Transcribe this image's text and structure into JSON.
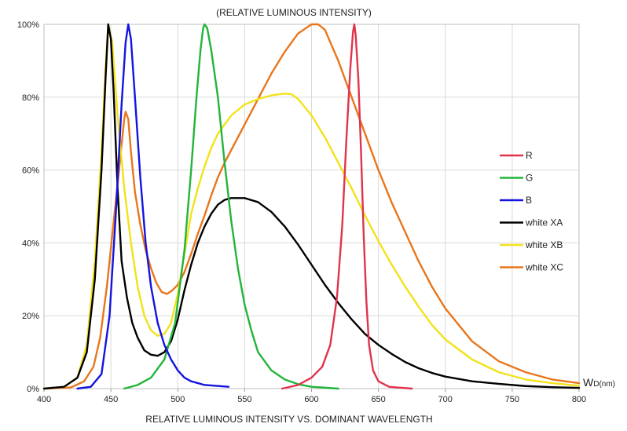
{
  "chart_data": {
    "type": "line",
    "title": "(RELATIVE LUMINOUS INTENSITY)",
    "xlabel": "RELATIVE LUMINOUS INTENSITY VS. DOMINANT WAVELENGTH",
    "x_unit_main": "W",
    "x_unit_sub": "D(nm)",
    "xlim": [
      400,
      800
    ],
    "ylim": [
      0,
      100
    ],
    "x_ticks": [
      400,
      450,
      500,
      550,
      600,
      650,
      700,
      750,
      800
    ],
    "y_ticks": [
      0,
      20,
      40,
      60,
      80,
      100
    ],
    "y_tick_labels": [
      "0%",
      "20%",
      "40%",
      "60%",
      "80%",
      "100%"
    ],
    "grid": true,
    "legend_position": "right",
    "series": [
      {
        "name": "R",
        "color": "#e0344c",
        "points": [
          [
            578,
            0
          ],
          [
            590,
            1
          ],
          [
            600,
            3
          ],
          [
            608,
            6
          ],
          [
            614,
            12
          ],
          [
            619,
            25
          ],
          [
            623,
            45
          ],
          [
            626,
            68
          ],
          [
            629,
            88
          ],
          [
            631,
            98
          ],
          [
            632,
            100
          ],
          [
            633,
            97
          ],
          [
            635,
            85
          ],
          [
            637,
            65
          ],
          [
            639,
            42
          ],
          [
            641,
            24
          ],
          [
            643,
            12
          ],
          [
            646,
            5
          ],
          [
            650,
            2
          ],
          [
            658,
            0.5
          ],
          [
            675,
            0
          ]
        ]
      },
      {
        "name": "G",
        "color": "#22b53a",
        "points": [
          [
            460,
            0
          ],
          [
            470,
            1
          ],
          [
            480,
            3
          ],
          [
            490,
            8
          ],
          [
            498,
            18
          ],
          [
            505,
            38
          ],
          [
            510,
            60
          ],
          [
            514,
            80
          ],
          [
            517,
            93
          ],
          [
            519,
            99
          ],
          [
            520,
            100
          ],
          [
            522,
            99
          ],
          [
            525,
            93
          ],
          [
            530,
            80
          ],
          [
            535,
            62
          ],
          [
            540,
            46
          ],
          [
            545,
            33
          ],
          [
            550,
            23
          ],
          [
            555,
            16
          ],
          [
            560,
            10
          ],
          [
            570,
            5
          ],
          [
            580,
            2.5
          ],
          [
            590,
            1.2
          ],
          [
            600,
            0.5
          ],
          [
            620,
            0
          ]
        ]
      },
      {
        "name": "B",
        "color": "#1414e0",
        "points": [
          [
            425,
            0
          ],
          [
            435,
            0.5
          ],
          [
            443,
            4
          ],
          [
            449,
            20
          ],
          [
            454,
            50
          ],
          [
            458,
            78
          ],
          [
            461,
            95
          ],
          [
            463,
            100
          ],
          [
            465,
            96
          ],
          [
            468,
            80
          ],
          [
            472,
            58
          ],
          [
            476,
            40
          ],
          [
            480,
            28
          ],
          [
            485,
            18
          ],
          [
            490,
            12
          ],
          [
            495,
            8
          ],
          [
            500,
            5
          ],
          [
            505,
            3
          ],
          [
            510,
            2
          ],
          [
            520,
            1
          ],
          [
            538,
            0.5
          ]
        ]
      },
      {
        "name": "white XA",
        "color": "#000000",
        "points": [
          [
            400,
            0
          ],
          [
            415,
            0.5
          ],
          [
            425,
            3
          ],
          [
            432,
            10
          ],
          [
            438,
            30
          ],
          [
            443,
            60
          ],
          [
            446,
            85
          ],
          [
            448,
            100
          ],
          [
            450,
            96
          ],
          [
            452,
            82
          ],
          [
            455,
            55
          ],
          [
            458,
            35
          ],
          [
            462,
            25
          ],
          [
            466,
            18
          ],
          [
            470,
            14
          ],
          [
            475,
            10.5
          ],
          [
            480,
            9.3
          ],
          [
            485,
            9
          ],
          [
            490,
            10
          ],
          [
            495,
            13
          ],
          [
            500,
            19
          ],
          [
            505,
            27
          ],
          [
            510,
            34
          ],
          [
            515,
            40
          ],
          [
            520,
            44.5
          ],
          [
            525,
            48
          ],
          [
            530,
            50.5
          ],
          [
            535,
            51.8
          ],
          [
            540,
            52.3
          ],
          [
            550,
            52.3
          ],
          [
            560,
            51.2
          ],
          [
            570,
            48.5
          ],
          [
            580,
            44.5
          ],
          [
            590,
            39.5
          ],
          [
            600,
            34
          ],
          [
            610,
            28.5
          ],
          [
            620,
            23.5
          ],
          [
            630,
            19
          ],
          [
            640,
            15
          ],
          [
            650,
            12
          ],
          [
            660,
            9.5
          ],
          [
            670,
            7.3
          ],
          [
            680,
            5.6
          ],
          [
            690,
            4.3
          ],
          [
            700,
            3.3
          ],
          [
            720,
            2
          ],
          [
            740,
            1.3
          ],
          [
            760,
            0.7
          ],
          [
            780,
            0.4
          ],
          [
            800,
            0.2
          ]
        ]
      },
      {
        "name": "white XB",
        "color": "#f2e21a",
        "points": [
          [
            400,
            0
          ],
          [
            415,
            0.5
          ],
          [
            425,
            3
          ],
          [
            432,
            12
          ],
          [
            438,
            35
          ],
          [
            443,
            65
          ],
          [
            446,
            88
          ],
          [
            448,
            100
          ],
          [
            451,
            95
          ],
          [
            455,
            75
          ],
          [
            460,
            55
          ],
          [
            465,
            40
          ],
          [
            470,
            28
          ],
          [
            475,
            20
          ],
          [
            480,
            16
          ],
          [
            485,
            14.5
          ],
          [
            490,
            15
          ],
          [
            495,
            18
          ],
          [
            500,
            26
          ],
          [
            505,
            37
          ],
          [
            510,
            48
          ],
          [
            515,
            55
          ],
          [
            520,
            61
          ],
          [
            525,
            66
          ],
          [
            530,
            70
          ],
          [
            540,
            75
          ],
          [
            550,
            78
          ],
          [
            560,
            79.5
          ],
          [
            570,
            80.5
          ],
          [
            580,
            81
          ],
          [
            585,
            80.8
          ],
          [
            590,
            79.5
          ],
          [
            600,
            75
          ],
          [
            610,
            69
          ],
          [
            620,
            62
          ],
          [
            630,
            55
          ],
          [
            640,
            47.5
          ],
          [
            650,
            40.5
          ],
          [
            660,
            34
          ],
          [
            670,
            28
          ],
          [
            680,
            22.5
          ],
          [
            690,
            17.5
          ],
          [
            700,
            13.5
          ],
          [
            720,
            8
          ],
          [
            740,
            4.5
          ],
          [
            760,
            2.5
          ],
          [
            780,
            1.5
          ],
          [
            800,
            0.8
          ]
        ]
      },
      {
        "name": "white XC",
        "color": "#e8761c",
        "points": [
          [
            400,
            0
          ],
          [
            420,
            0.3
          ],
          [
            430,
            2
          ],
          [
            437,
            6
          ],
          [
            442,
            14
          ],
          [
            447,
            28
          ],
          [
            451,
            42
          ],
          [
            455,
            56
          ],
          [
            458,
            67
          ],
          [
            460,
            74
          ],
          [
            461,
            76
          ],
          [
            463,
            74
          ],
          [
            465,
            65
          ],
          [
            468,
            54
          ],
          [
            472,
            45
          ],
          [
            476,
            38
          ],
          [
            480,
            33
          ],
          [
            484,
            29
          ],
          [
            488,
            26.5
          ],
          [
            492,
            26
          ],
          [
            496,
            27
          ],
          [
            500,
            28.5
          ],
          [
            505,
            32
          ],
          [
            510,
            37
          ],
          [
            515,
            42.5
          ],
          [
            520,
            47.5
          ],
          [
            525,
            53
          ],
          [
            530,
            58
          ],
          [
            535,
            62
          ],
          [
            540,
            65.5
          ],
          [
            550,
            72.5
          ],
          [
            560,
            79.5
          ],
          [
            570,
            86.5
          ],
          [
            580,
            92.5
          ],
          [
            590,
            97.5
          ],
          [
            600,
            100
          ],
          [
            605,
            100
          ],
          [
            610,
            98.5
          ],
          [
            620,
            90
          ],
          [
            630,
            80
          ],
          [
            640,
            70
          ],
          [
            650,
            60
          ],
          [
            660,
            51
          ],
          [
            670,
            43
          ],
          [
            680,
            35
          ],
          [
            690,
            28
          ],
          [
            700,
            22
          ],
          [
            720,
            13
          ],
          [
            740,
            7.5
          ],
          [
            760,
            4.5
          ],
          [
            780,
            2.5
          ],
          [
            800,
            1.5
          ]
        ]
      }
    ]
  }
}
